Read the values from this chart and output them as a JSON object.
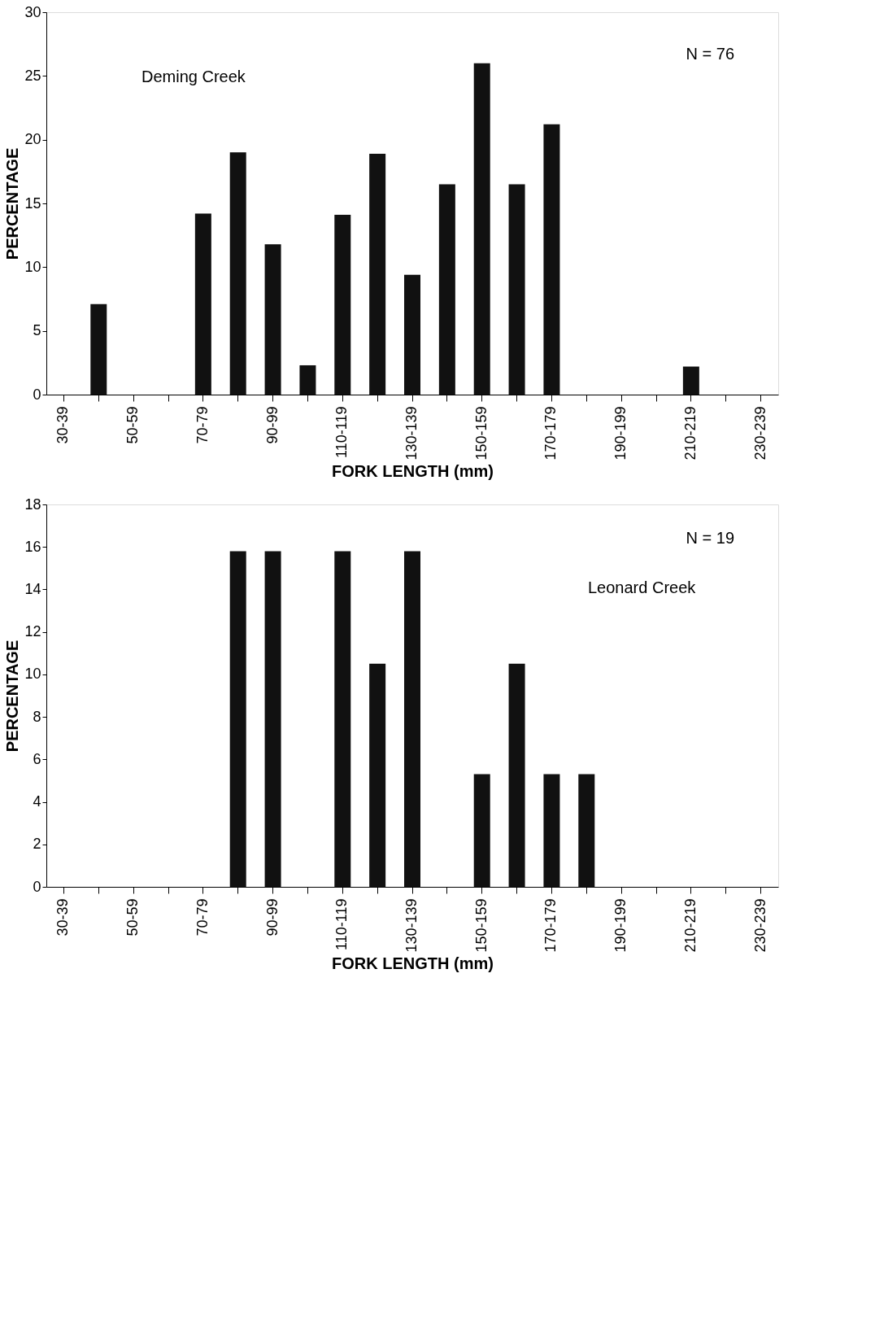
{
  "chart_data": [
    {
      "type": "bar",
      "categories": [
        "30-39",
        null,
        "50-59",
        null,
        "70-79",
        null,
        "90-99",
        null,
        "110-119",
        null,
        "130-139",
        null,
        "150-159",
        null,
        "170-179",
        null,
        "190-199",
        null,
        "210-219",
        null,
        "230-239"
      ],
      "values": [
        null,
        7.1,
        null,
        null,
        14.2,
        19.0,
        11.8,
        2.3,
        14.1,
        18.9,
        9.4,
        16.5,
        26.0,
        16.5,
        21.2,
        null,
        null,
        null,
        2.2,
        null,
        null
      ],
      "color": "#111111",
      "ylim": [
        0,
        30
      ],
      "yticks": [
        0,
        5,
        10,
        15,
        20,
        25,
        30
      ],
      "xlabel": "FORK LENGTH (mm)",
      "ylabel": "PERCENTAGE",
      "annotations": [
        "N = 76",
        "Deming Creek"
      ]
    },
    {
      "type": "bar",
      "categories": [
        "30-39",
        null,
        "50-59",
        null,
        "70-79",
        null,
        "90-99",
        null,
        "110-119",
        null,
        "130-139",
        null,
        "150-159",
        null,
        "170-179",
        null,
        "190-199",
        null,
        "210-219",
        null,
        "230-239"
      ],
      "values": [
        null,
        null,
        null,
        null,
        null,
        15.8,
        15.8,
        null,
        15.8,
        10.5,
        15.8,
        null,
        5.3,
        10.5,
        5.3,
        5.3,
        null,
        null,
        null,
        null,
        null
      ],
      "color": "#111111",
      "ylim": [
        0,
        18
      ],
      "yticks": [
        0,
        2,
        4,
        6,
        8,
        10,
        12,
        14,
        16,
        18
      ],
      "xlabel": "FORK LENGTH (mm)",
      "ylabel": "PERCENTAGE",
      "annotations": [
        "N = 19",
        "Leonard Creek"
      ]
    }
  ]
}
